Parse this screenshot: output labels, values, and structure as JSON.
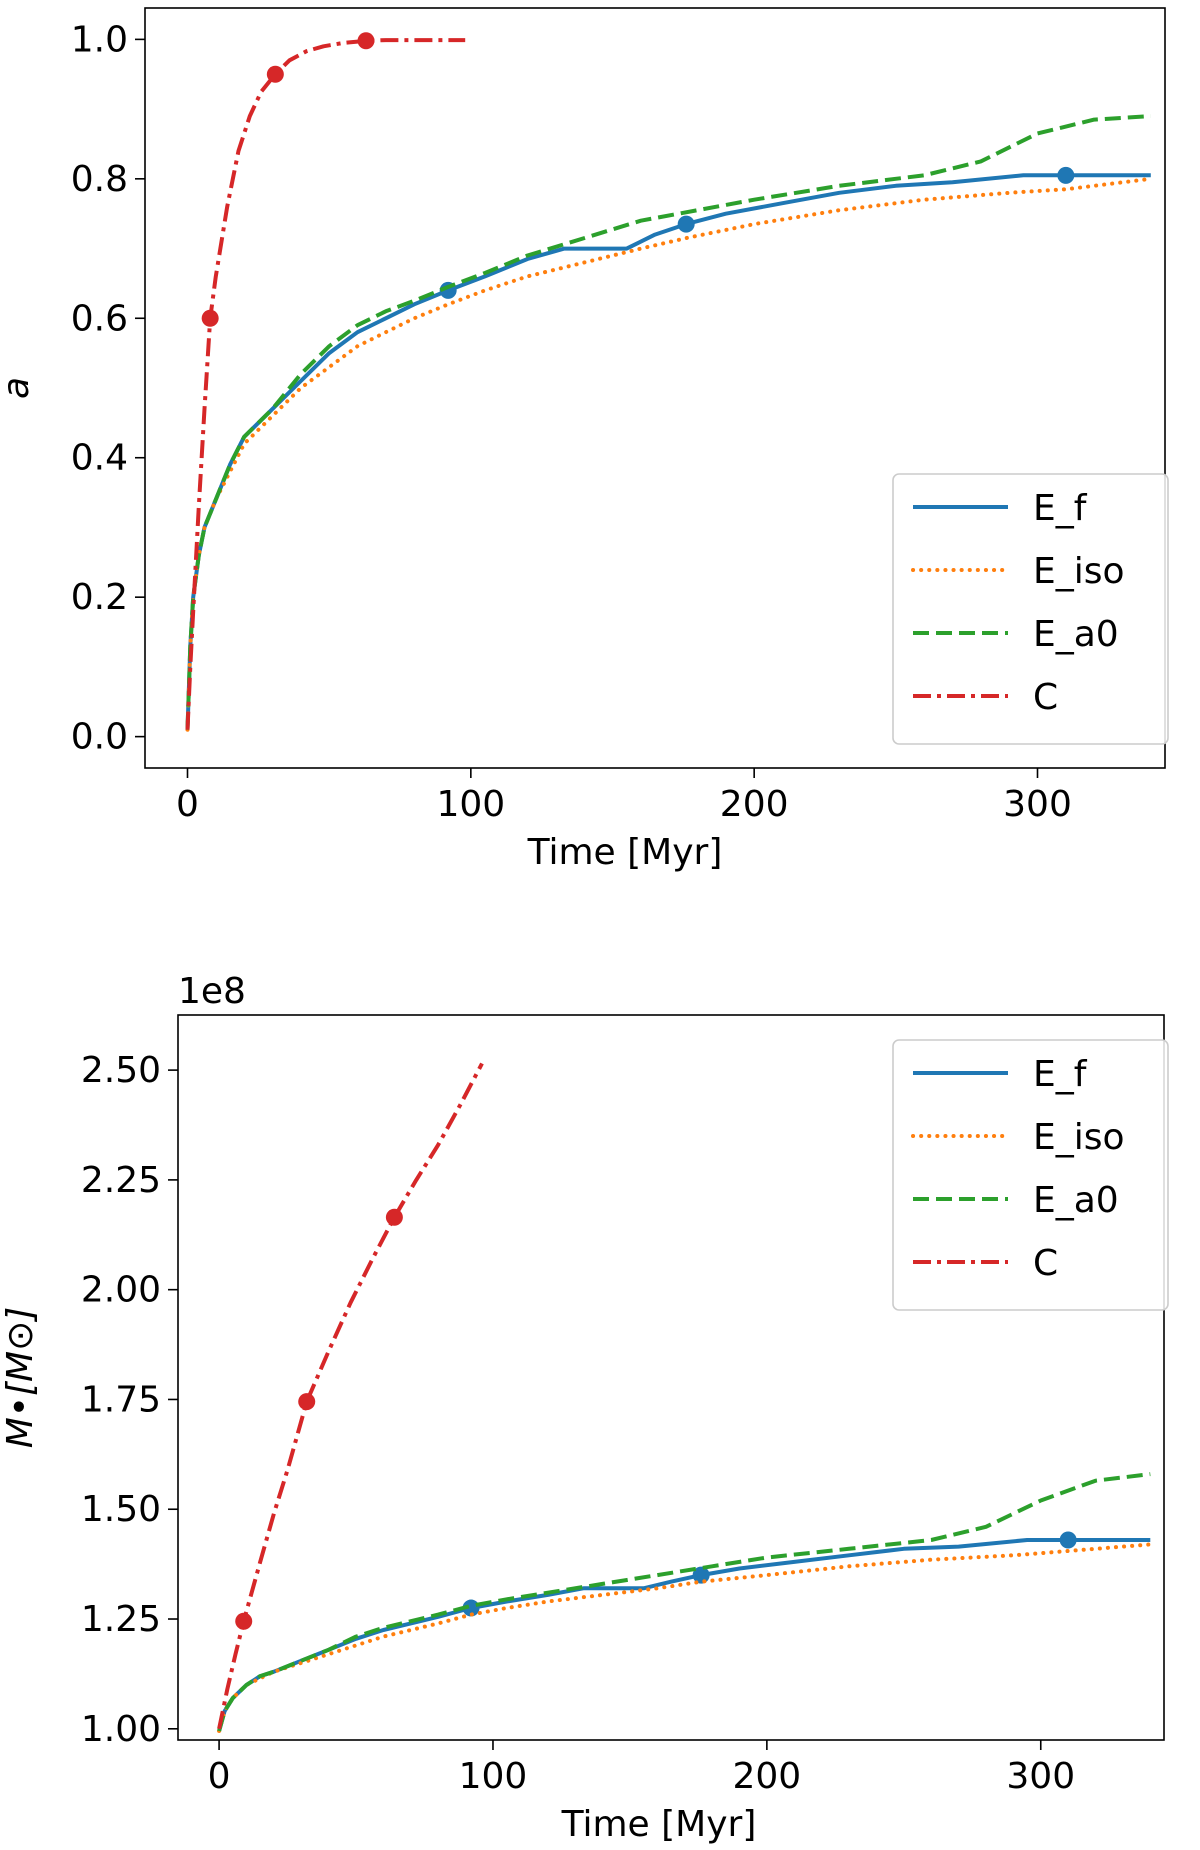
{
  "chart_data": [
    {
      "type": "line",
      "title": "",
      "xlabel": "Time   [Myr]",
      "ylabel": "a",
      "xlim": [
        -15,
        345
      ],
      "ylim": [
        -0.045,
        1.045
      ],
      "xticks": [
        0,
        100,
        200,
        300
      ],
      "xtick_labels": [
        "0",
        "100",
        "200",
        "300"
      ],
      "yticks": [
        0.0,
        0.2,
        0.4,
        0.6,
        0.8,
        1.0
      ],
      "ytick_labels": [
        "0.0",
        "0.2",
        "0.4",
        "0.6",
        "0.8",
        "1.0"
      ],
      "offset_text": "",
      "grid": false,
      "legend_position": "lower-right",
      "series": [
        {
          "name": "E_f",
          "color": "#1f77b4",
          "style": "solid",
          "x": [
            0,
            1,
            2,
            4,
            6,
            10,
            15,
            20,
            30,
            40,
            50,
            60,
            70,
            80,
            92,
            105,
            120,
            133,
            155,
            165,
            176,
            190,
            210,
            230,
            250,
            270,
            295,
            310,
            320,
            340
          ],
          "y": [
            0.01,
            0.13,
            0.2,
            0.26,
            0.3,
            0.34,
            0.39,
            0.43,
            0.47,
            0.51,
            0.55,
            0.58,
            0.6,
            0.62,
            0.64,
            0.66,
            0.685,
            0.7,
            0.7,
            0.72,
            0.735,
            0.75,
            0.765,
            0.78,
            0.79,
            0.795,
            0.805,
            0.805,
            0.805,
            0.805
          ],
          "markers_x": [
            92,
            176,
            310
          ],
          "markers_y": [
            0.64,
            0.735,
            0.805
          ]
        },
        {
          "name": "E_iso",
          "color": "#ff7f0e",
          "style": "dotted",
          "x": [
            0,
            1,
            2,
            4,
            6,
            10,
            15,
            20,
            30,
            40,
            50,
            60,
            70,
            80,
            92,
            105,
            120,
            140,
            160,
            176,
            200,
            230,
            260,
            290,
            310,
            340
          ],
          "y": [
            0.01,
            0.13,
            0.2,
            0.26,
            0.3,
            0.34,
            0.38,
            0.42,
            0.46,
            0.5,
            0.53,
            0.56,
            0.58,
            0.6,
            0.62,
            0.64,
            0.66,
            0.68,
            0.7,
            0.715,
            0.735,
            0.755,
            0.77,
            0.78,
            0.785,
            0.8
          ],
          "markers_x": [],
          "markers_y": []
        },
        {
          "name": "E_a0",
          "color": "#2ca02c",
          "style": "dashed",
          "x": [
            0,
            1,
            2,
            4,
            6,
            10,
            15,
            20,
            30,
            40,
            50,
            60,
            70,
            80,
            92,
            105,
            120,
            140,
            160,
            180,
            200,
            230,
            260,
            280,
            300,
            320,
            340
          ],
          "y": [
            0.01,
            0.13,
            0.2,
            0.26,
            0.3,
            0.34,
            0.39,
            0.43,
            0.47,
            0.52,
            0.56,
            0.59,
            0.61,
            0.625,
            0.645,
            0.665,
            0.69,
            0.715,
            0.74,
            0.755,
            0.77,
            0.79,
            0.805,
            0.825,
            0.865,
            0.885,
            0.89
          ],
          "markers_x": [],
          "markers_y": []
        },
        {
          "name": "C",
          "color": "#d62728",
          "style": "dashdot",
          "x": [
            0,
            1,
            2,
            4,
            6,
            8,
            10,
            14,
            18,
            22,
            26,
            31,
            36,
            42,
            48,
            55,
            63,
            70,
            80,
            90,
            98
          ],
          "y": [
            0.01,
            0.1,
            0.18,
            0.33,
            0.47,
            0.6,
            0.66,
            0.76,
            0.84,
            0.89,
            0.925,
            0.95,
            0.97,
            0.983,
            0.99,
            0.995,
            0.998,
            0.999,
            0.999,
            0.999,
            0.999
          ],
          "markers_x": [
            8,
            31,
            63
          ],
          "markers_y": [
            0.6,
            0.95,
            0.998
          ]
        }
      ]
    },
    {
      "type": "line",
      "title": "",
      "xlabel": "Time   [Myr]",
      "ylabel": "M•[M⊙]",
      "xlim": [
        -15,
        345
      ],
      "ylim": [
        0.9745,
        2.6255
      ],
      "xticks": [
        0,
        100,
        200,
        300
      ],
      "xtick_labels": [
        "0",
        "100",
        "200",
        "300"
      ],
      "yticks": [
        1.0,
        1.25,
        1.5,
        1.75,
        2.0,
        2.25,
        2.5
      ],
      "ytick_labels": [
        "1.00",
        "1.25",
        "1.50",
        "1.75",
        "2.00",
        "2.25",
        "2.50"
      ],
      "offset_text": "1e8",
      "grid": false,
      "legend_position": "upper-right",
      "series": [
        {
          "name": "E_f",
          "color": "#1f77b4",
          "style": "solid",
          "x": [
            0,
            2,
            5,
            10,
            15,
            20,
            30,
            40,
            50,
            60,
            70,
            80,
            92,
            105,
            120,
            133,
            155,
            165,
            176,
            190,
            210,
            230,
            250,
            270,
            295,
            310,
            320,
            340
          ],
          "y": [
            0.995,
            1.04,
            1.07,
            1.1,
            1.12,
            1.13,
            1.155,
            1.18,
            1.205,
            1.225,
            1.24,
            1.255,
            1.275,
            1.29,
            1.305,
            1.32,
            1.32,
            1.335,
            1.35,
            1.365,
            1.38,
            1.395,
            1.41,
            1.415,
            1.43,
            1.43,
            1.43,
            1.43
          ],
          "markers_x": [
            92,
            176,
            310
          ],
          "markers_y": [
            1.275,
            1.35,
            1.43
          ]
        },
        {
          "name": "E_iso",
          "color": "#ff7f0e",
          "style": "dotted",
          "x": [
            0,
            2,
            5,
            10,
            15,
            20,
            30,
            40,
            50,
            60,
            70,
            80,
            92,
            105,
            120,
            140,
            160,
            176,
            200,
            230,
            260,
            290,
            310,
            340
          ],
          "y": [
            0.995,
            1.04,
            1.07,
            1.1,
            1.115,
            1.13,
            1.15,
            1.17,
            1.19,
            1.21,
            1.225,
            1.24,
            1.26,
            1.275,
            1.29,
            1.305,
            1.32,
            1.335,
            1.35,
            1.37,
            1.385,
            1.395,
            1.405,
            1.42
          ],
          "markers_x": [],
          "markers_y": []
        },
        {
          "name": "E_a0",
          "color": "#2ca02c",
          "style": "dashed",
          "x": [
            0,
            2,
            5,
            10,
            15,
            20,
            30,
            40,
            50,
            60,
            70,
            80,
            92,
            105,
            120,
            140,
            160,
            180,
            200,
            230,
            260,
            280,
            300,
            320,
            340
          ],
          "y": [
            0.995,
            1.04,
            1.07,
            1.1,
            1.12,
            1.13,
            1.155,
            1.18,
            1.21,
            1.23,
            1.245,
            1.26,
            1.28,
            1.295,
            1.31,
            1.33,
            1.35,
            1.37,
            1.39,
            1.41,
            1.43,
            1.46,
            1.52,
            1.565,
            1.58
          ],
          "markers_x": [],
          "markers_y": []
        },
        {
          "name": "C",
          "color": "#d62728",
          "style": "dashdot",
          "x": [
            0,
            3,
            6,
            9,
            15,
            20,
            25,
            32,
            40,
            48,
            56,
            64,
            72,
            80,
            88,
            96
          ],
          "y": [
            1.0,
            1.09,
            1.17,
            1.245,
            1.38,
            1.49,
            1.59,
            1.745,
            1.86,
            1.97,
            2.07,
            2.165,
            2.25,
            2.33,
            2.42,
            2.515
          ],
          "markers_x": [
            9,
            32,
            64
          ],
          "markers_y": [
            1.245,
            1.745,
            2.165
          ]
        }
      ]
    }
  ]
}
